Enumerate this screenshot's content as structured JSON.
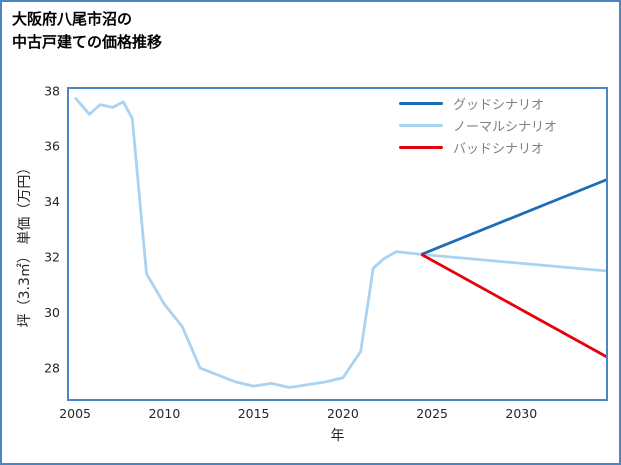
{
  "page": {
    "frame_border_color": "#4a85c4",
    "background": "#ffffff"
  },
  "header": {
    "title": "大阪府八尾市沼の\n中古戸建ての価格推移"
  },
  "axes": {
    "xlabel": "年",
    "ylabel": "坪（3.3㎡） 単価（万円）"
  },
  "chart_data": {
    "type": "line",
    "title": "大阪府八尾市沼の中古戸建ての価格推移",
    "xlabel": "年",
    "ylabel": "坪（3.3㎡） 単価（万円）",
    "xlim": [
      2004.6,
      2034.8
    ],
    "ylim": [
      26.85,
      38.1
    ],
    "xticks": [
      2005,
      2010,
      2015,
      2020,
      2025,
      2030
    ],
    "yticks": [
      28,
      30,
      32,
      34,
      36,
      38
    ],
    "grid": false,
    "legend_position": "top-right-inside",
    "axis_color": "#4a85c4",
    "tick_text_color": "#262626",
    "legend_text_color": "#7f7f7f",
    "title_text_color": "#000000",
    "series": [
      {
        "id": "good",
        "name": "グッドシナリオ",
        "color": "#1b6db5",
        "legend": true,
        "z": 2,
        "points": [
          [
            2024.4,
            32.1
          ],
          [
            2034.8,
            34.8
          ]
        ]
      },
      {
        "id": "normal",
        "name": "ノーマルシナリオ",
        "color": "#a9d3f2",
        "legend": true,
        "z": 1,
        "points": [
          [
            2005,
            37.75
          ],
          [
            2005.8,
            37.15
          ],
          [
            2006.4,
            37.5
          ],
          [
            2007.1,
            37.4
          ],
          [
            2007.7,
            37.6
          ],
          [
            2008.2,
            37.0
          ],
          [
            2009,
            31.4
          ],
          [
            2010,
            30.3
          ],
          [
            2011,
            29.5
          ],
          [
            2012,
            28.0
          ],
          [
            2013,
            27.75
          ],
          [
            2014,
            27.5
          ],
          [
            2015,
            27.35
          ],
          [
            2016,
            27.45
          ],
          [
            2017,
            27.3
          ],
          [
            2018,
            27.4
          ],
          [
            2019,
            27.5
          ],
          [
            2020,
            27.65
          ],
          [
            2021,
            28.6
          ],
          [
            2021.7,
            31.6
          ],
          [
            2022.3,
            31.95
          ],
          [
            2023,
            32.2
          ],
          [
            2024.4,
            32.1
          ],
          [
            2034.8,
            31.5
          ]
        ]
      },
      {
        "id": "bad",
        "name": "バッドシナリオ",
        "color": "#e8000b",
        "legend": true,
        "z": 3,
        "points": [
          [
            2024.4,
            32.1
          ],
          [
            2034.8,
            28.4
          ]
        ]
      }
    ]
  }
}
